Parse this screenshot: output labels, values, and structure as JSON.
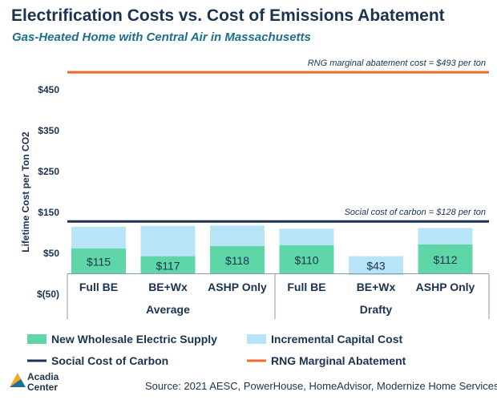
{
  "title": "Electrification Costs vs. Cost of Emissions Abatement",
  "subtitle": "Gas-Heated Home with Central Air in Massachusetts",
  "source": "Source: 2021 AESC, PowerHouse, HomeAdvisor, Modernize Home Services",
  "logo": {
    "line1": "Acadia",
    "line2": "Center"
  },
  "colors": {
    "supply": "#5fd6a7",
    "capital": "#b8e4f7",
    "social": "#1b3350",
    "rng": "#ec6a2c",
    "text": "#1b3350"
  },
  "chart_data": {
    "type": "bar",
    "stacked": true,
    "ylabel": "Lifetime Cost per Ton CO2",
    "ylim": [
      -50,
      493
    ],
    "yticks": [
      -50,
      50,
      150,
      250,
      350,
      450
    ],
    "ytick_labels": [
      "$(50)",
      "$50",
      "$150",
      "$250",
      "$350",
      "$450"
    ],
    "groups": [
      {
        "label": "Average",
        "categories": [
          "Full BE",
          "BE+Wx",
          "ASHP Only"
        ]
      },
      {
        "label": "Drafty",
        "categories": [
          "Full BE",
          "BE+Wx",
          "ASHP Only"
        ]
      }
    ],
    "series": [
      {
        "name": "New Wholesale Electric Supply",
        "values": [
          62,
          43,
          68,
          70,
          -2,
          72
        ]
      },
      {
        "name": "Incremental Capital Cost",
        "values": [
          53,
          74,
          50,
          40,
          45,
          40
        ]
      }
    ],
    "totals": [
      115,
      117,
      118,
      110,
      43,
      112
    ],
    "total_labels": [
      "$115",
      "$117",
      "$118",
      "$110",
      "$43",
      "$112"
    ],
    "reference_lines": [
      {
        "name": "Social Cost of Carbon",
        "value": 128,
        "label": "Social cost of carbon = $128 per ton"
      },
      {
        "name": "RNG Marginal Abatement",
        "value": 493,
        "label": "RNG marginal abatement cost = $493 per ton"
      }
    ],
    "legend": [
      {
        "name": "New Wholesale Electric Supply",
        "kind": "bar",
        "color": "supply"
      },
      {
        "name": "Incremental Capital Cost",
        "kind": "bar",
        "color": "capital"
      },
      {
        "name": "Social Cost of Carbon",
        "kind": "line",
        "color": "social"
      },
      {
        "name": "RNG Marginal Abatement",
        "kind": "line",
        "color": "rng"
      }
    ],
    "legend_position": "bottom",
    "grid": false
  }
}
